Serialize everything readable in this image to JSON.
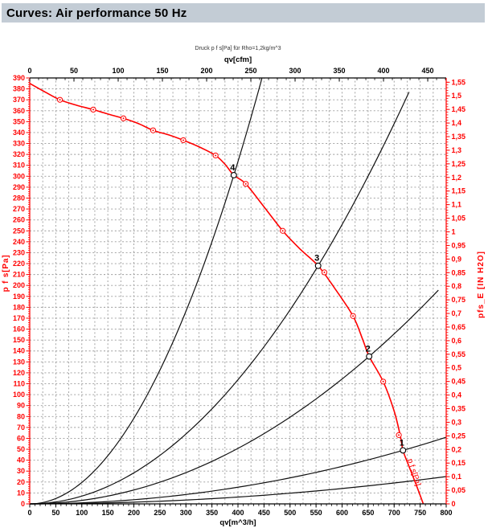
{
  "window": {
    "title": "Curves: Air performance 50 Hz"
  },
  "colors": {
    "title_bar_bg": "#c3ccd5",
    "axis_red": "#ff0000",
    "curve_black": "#111111",
    "grid_gray": "#9a9a9a"
  },
  "chart_data": {
    "type": "line",
    "subtitle": "Druck p f s[Pa] für Rho=1,2kg/m^3",
    "axes": {
      "top": {
        "label": "qv[cfm]",
        "min": 0,
        "max_tick": 450,
        "tick_step": 50,
        "minor_step": 10,
        "minor_max": 470,
        "cfm_to_m3h": 1.699011,
        "tick_labels": [
          "0",
          "50",
          "100",
          "150",
          "200",
          "250",
          "300",
          "350",
          "400",
          "450"
        ]
      },
      "bottom": {
        "label": "qv[m^3/h]",
        "min": 0,
        "max": 800,
        "tick_step": 50,
        "minor_step": 10,
        "tick_labels": [
          "0",
          "50",
          "100",
          "150",
          "200",
          "250",
          "300",
          "350",
          "400",
          "450",
          "500",
          "550",
          "600",
          "650",
          "700",
          "750",
          "800"
        ]
      },
      "left": {
        "label": "p f s[Pa]",
        "min": 0,
        "max": 390,
        "tick_step": 10,
        "minor_step": 2,
        "tick_labels": [
          "0",
          "10",
          "20",
          "30",
          "40",
          "50",
          "60",
          "70",
          "80",
          "90",
          "100",
          "110",
          "120",
          "130",
          "140",
          "150",
          "160",
          "170",
          "180",
          "190",
          "200",
          "210",
          "220",
          "230",
          "240",
          "250",
          "260",
          "270",
          "280",
          "290",
          "300",
          "310",
          "320",
          "330",
          "340",
          "350",
          "360",
          "370",
          "380",
          "390"
        ]
      },
      "right": {
        "label": "pfs_E [IN H2O]",
        "min": 0,
        "max": 1.55,
        "tick_step": 0.05,
        "minor_step": 0.01,
        "pa_per_unit": 249.089,
        "tick_labels": [
          "0",
          "0,05",
          "0,1",
          "0,15",
          "0,2",
          "0,25",
          "0,3",
          "0,35",
          "0,4",
          "0,45",
          "0,5",
          "0,55",
          "0,6",
          "0,65",
          "0,7",
          "0,75",
          "0,8",
          "0,85",
          "0,9",
          "0,95",
          "1",
          "1,05",
          "1,1",
          "1,15",
          "1,2",
          "1,25",
          "1,3",
          "1,35",
          "1,4",
          "1,45",
          "1,5",
          "1,55"
        ]
      }
    },
    "grid": {
      "v_step_m3h": 25,
      "h_step_pa": 10
    },
    "fan_curve": {
      "end_label": "p f s[Pa]",
      "points": [
        [
          0,
          385
        ],
        [
          30,
          377
        ],
        [
          58,
          370
        ],
        [
          90,
          365
        ],
        [
          122,
          361
        ],
        [
          150,
          357
        ],
        [
          180,
          353
        ],
        [
          210,
          348
        ],
        [
          237,
          342
        ],
        [
          266,
          338
        ],
        [
          295,
          333
        ],
        [
          325,
          327
        ],
        [
          357,
          319
        ],
        [
          375,
          311
        ],
        [
          392,
          301
        ],
        [
          415,
          293
        ],
        [
          450,
          272
        ],
        [
          486,
          250
        ],
        [
          520,
          233
        ],
        [
          554,
          218
        ],
        [
          585,
          198
        ],
        [
          621,
          172
        ],
        [
          640,
          150
        ],
        [
          652,
          135
        ],
        [
          679,
          112
        ],
        [
          700,
          85
        ],
        [
          712,
          62
        ],
        [
          717,
          49
        ],
        [
          728,
          35
        ],
        [
          742,
          18
        ],
        [
          756,
          0
        ]
      ],
      "markers": [
        [
          58,
          370
        ],
        [
          122,
          361
        ],
        [
          180,
          353
        ],
        [
          237,
          342
        ],
        [
          295,
          333
        ],
        [
          357,
          319
        ],
        [
          415,
          293
        ],
        [
          486,
          250
        ],
        [
          566,
          212
        ],
        [
          621,
          172
        ],
        [
          679,
          112
        ],
        [
          709,
          63
        ]
      ]
    },
    "operating_points": [
      {
        "label": "4",
        "qv": 392,
        "p": 301
      },
      {
        "label": "3",
        "qv": 554,
        "p": 218
      },
      {
        "label": "2",
        "qv": 652,
        "p": 135
      },
      {
        "label": "1",
        "qv": 717,
        "p": 49
      }
    ],
    "system_curves": [
      {
        "label": "4",
        "qv": 392,
        "p": 301,
        "qv_end": 446
      },
      {
        "label": "3",
        "qv": 554,
        "p": 218,
        "qv_end": 741
      },
      {
        "label": "2",
        "qv": 652,
        "p": 135,
        "qv_end": 785
      },
      {
        "label": "1",
        "qv": 717,
        "p": 49,
        "qv_end": 800
      },
      {
        "label": "",
        "qv": 800,
        "p": 25,
        "qv_end": 800
      }
    ]
  }
}
